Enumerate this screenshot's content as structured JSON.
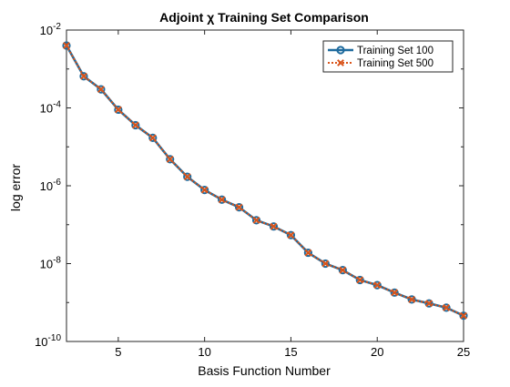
{
  "chart_data": {
    "type": "line",
    "title": "Adjoint χ Training Set Comparison",
    "xlabel": "Basis Function Number",
    "ylabel": "log error",
    "xlim": [
      2,
      25
    ],
    "ylim": [
      1e-10,
      0.01
    ],
    "y_scale": "log",
    "x_ticks": [
      5,
      10,
      15,
      20,
      25
    ],
    "x_tick_labels": [
      "5",
      "10",
      "15",
      "20",
      "25"
    ],
    "y_ticks": [
      1e-10,
      1e-08,
      1e-06,
      0.0001,
      0.01
    ],
    "y_tick_labels": [
      {
        "base": "10",
        "exp": "-10"
      },
      {
        "base": "10",
        "exp": "-8"
      },
      {
        "base": "10",
        "exp": "-6"
      },
      {
        "base": "10",
        "exp": "-4"
      },
      {
        "base": "10",
        "exp": "-2"
      }
    ],
    "grid": false,
    "legend_position": "top-right",
    "x": [
      2,
      3,
      4,
      5,
      6,
      7,
      8,
      9,
      10,
      11,
      12,
      13,
      14,
      15,
      16,
      17,
      18,
      19,
      20,
      21,
      22,
      23,
      24,
      25
    ],
    "series": [
      {
        "name": "Training Set 100",
        "color": "#1f6b9e",
        "marker": "circle",
        "line_style": "solid",
        "values": [
          0.004,
          0.00065,
          0.0003,
          9e-05,
          3.6e-05,
          1.7e-05,
          4.8e-06,
          1.7e-06,
          7.8e-07,
          4.4e-07,
          2.8e-07,
          1.3e-07,
          9e-08,
          5.4e-08,
          1.9e-08,
          1e-08,
          6.8e-09,
          3.8e-09,
          2.8e-09,
          1.8e-09,
          1.2e-09,
          9.5e-10,
          7.4e-10,
          4.6e-10
        ]
      },
      {
        "name": "Training Set 500",
        "color": "#d9541a",
        "marker": "x",
        "line_style": "dotted",
        "values": [
          0.004,
          0.00065,
          0.0003,
          9e-05,
          3.6e-05,
          1.7e-05,
          4.8e-06,
          1.7e-06,
          7.8e-07,
          4.4e-07,
          2.8e-07,
          1.3e-07,
          9e-08,
          5.4e-08,
          1.9e-08,
          1e-08,
          6.8e-09,
          3.8e-09,
          2.8e-09,
          1.8e-09,
          1.2e-09,
          9.5e-10,
          7.4e-10,
          4.6e-10
        ]
      }
    ]
  }
}
